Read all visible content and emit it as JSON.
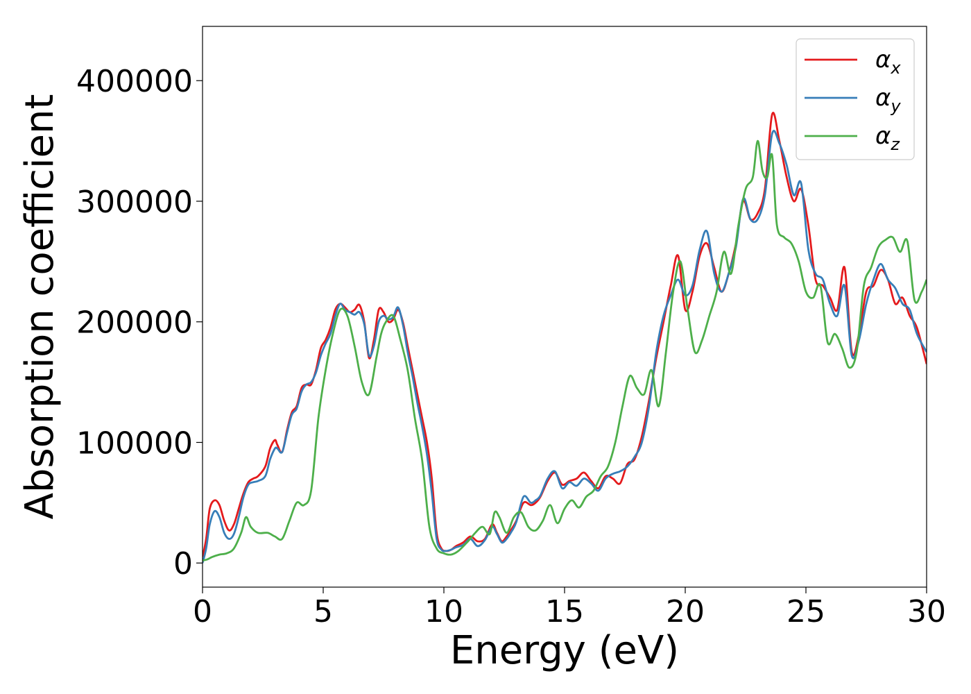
{
  "chart_data": {
    "type": "line",
    "title": "",
    "xlabel": "Energy (eV)",
    "ylabel": "Absorption coefficient",
    "xlim": [
      0,
      30
    ],
    "ylim": [
      -20000,
      445000
    ],
    "xticks": [
      0,
      5,
      10,
      15,
      20,
      25,
      30
    ],
    "xtick_labels": [
      "0",
      "5",
      "10",
      "15",
      "20",
      "25",
      "30"
    ],
    "yticks": [
      0,
      100000,
      200000,
      300000,
      400000
    ],
    "ytick_labels": [
      "0",
      "100000",
      "200000",
      "300000",
      "400000"
    ],
    "grid": false,
    "legend_position": "top-right",
    "series": [
      {
        "name": "α",
        "subscript": "x",
        "color": "#e41a1c",
        "x": [
          0,
          0.15,
          0.3,
          0.5,
          0.7,
          0.9,
          1.1,
          1.3,
          1.5,
          1.7,
          1.9,
          2.1,
          2.3,
          2.6,
          2.8,
          3.0,
          3.1,
          3.3,
          3.5,
          3.7,
          3.9,
          4.1,
          4.3,
          4.5,
          4.7,
          4.9,
          5.1,
          5.3,
          5.5,
          5.7,
          5.9,
          6.1,
          6.3,
          6.5,
          6.7,
          6.9,
          7.1,
          7.3,
          7.5,
          7.7,
          7.9,
          8.1,
          8.3,
          8.5,
          8.7,
          8.9,
          9.1,
          9.3,
          9.5,
          9.7,
          9.9,
          10.1,
          10.3,
          10.5,
          10.8,
          11.1,
          11.4,
          11.7,
          12.0,
          12.2,
          12.4,
          12.6,
          12.8,
          13.0,
          13.3,
          13.6,
          13.8,
          14.0,
          14.3,
          14.6,
          14.9,
          15.2,
          15.5,
          15.8,
          16.1,
          16.4,
          16.7,
          17.0,
          17.3,
          17.6,
          17.9,
          18.2,
          18.5,
          18.8,
          19.1,
          19.4,
          19.7,
          20.0,
          20.3,
          20.6,
          20.9,
          21.2,
          21.5,
          21.8,
          22.1,
          22.4,
          22.7,
          23.0,
          23.3,
          23.6,
          23.9,
          24.2,
          24.5,
          24.8,
          25.1,
          25.4,
          25.7,
          26.0,
          26.3,
          26.6,
          26.9,
          27.2,
          27.5,
          27.8,
          28.1,
          28.4,
          28.7,
          29.0,
          29.3,
          29.6,
          30.0
        ],
        "y": [
          5000,
          20000,
          45000,
          52000,
          48000,
          35000,
          27000,
          32000,
          45000,
          58000,
          67000,
          70000,
          72000,
          80000,
          95000,
          102000,
          98000,
          92000,
          110000,
          125000,
          130000,
          145000,
          148000,
          148000,
          160000,
          178000,
          185000,
          195000,
          210000,
          215000,
          212000,
          208000,
          210000,
          214000,
          200000,
          170000,
          185000,
          210000,
          208000,
          200000,
          202000,
          210000,
          200000,
          180000,
          160000,
          140000,
          120000,
          100000,
          70000,
          25000,
          12000,
          10000,
          11000,
          14000,
          17000,
          22000,
          18000,
          20000,
          32000,
          25000,
          18000,
          22000,
          28000,
          35000,
          50000,
          48000,
          50000,
          55000,
          68000,
          75000,
          65000,
          68000,
          70000,
          75000,
          68000,
          62000,
          72000,
          70000,
          66000,
          82000,
          86000,
          105000,
          135000,
          170000,
          200000,
          230000,
          255000,
          210000,
          225000,
          255000,
          265000,
          245000,
          225000,
          240000,
          265000,
          300000,
          285000,
          290000,
          310000,
          372000,
          350000,
          320000,
          300000,
          310000,
          280000,
          235000,
          230000,
          220000,
          210000,
          245000,
          175000,
          190000,
          225000,
          230000,
          243000,
          235000,
          215000,
          220000,
          205000,
          195000,
          165000
        ]
      },
      {
        "name": "α",
        "subscript": "y",
        "color": "#377eb8",
        "x": [
          0,
          0.15,
          0.3,
          0.5,
          0.7,
          0.9,
          1.1,
          1.3,
          1.5,
          1.7,
          1.9,
          2.1,
          2.3,
          2.6,
          2.8,
          3.0,
          3.1,
          3.3,
          3.5,
          3.7,
          3.9,
          4.1,
          4.3,
          4.5,
          4.7,
          4.9,
          5.1,
          5.3,
          5.5,
          5.7,
          5.9,
          6.1,
          6.3,
          6.5,
          6.7,
          6.9,
          7.1,
          7.3,
          7.5,
          7.7,
          7.9,
          8.1,
          8.3,
          8.5,
          8.7,
          8.9,
          9.1,
          9.3,
          9.5,
          9.7,
          9.9,
          10.1,
          10.3,
          10.5,
          10.8,
          11.1,
          11.4,
          11.7,
          12.0,
          12.2,
          12.4,
          12.6,
          12.8,
          13.0,
          13.3,
          13.6,
          13.8,
          14.0,
          14.3,
          14.6,
          14.9,
          15.2,
          15.5,
          15.8,
          16.1,
          16.4,
          16.7,
          17.0,
          17.3,
          17.6,
          17.9,
          18.2,
          18.5,
          18.8,
          19.1,
          19.4,
          19.7,
          20.0,
          20.3,
          20.6,
          20.9,
          21.2,
          21.5,
          21.8,
          22.1,
          22.4,
          22.7,
          23.0,
          23.3,
          23.6,
          23.9,
          24.2,
          24.5,
          24.8,
          25.1,
          25.4,
          25.7,
          26.0,
          26.3,
          26.6,
          26.9,
          27.2,
          27.5,
          27.8,
          28.1,
          28.4,
          28.7,
          29.0,
          29.3,
          29.6,
          30.0
        ],
        "y": [
          0,
          12000,
          32000,
          43000,
          38000,
          25000,
          20000,
          24000,
          38000,
          55000,
          65000,
          67000,
          68000,
          72000,
          86000,
          95000,
          95000,
          92000,
          108000,
          123000,
          128000,
          142000,
          148000,
          150000,
          158000,
          172000,
          182000,
          190000,
          205000,
          215000,
          210000,
          208000,
          206000,
          208000,
          198000,
          172000,
          180000,
          200000,
          205000,
          202000,
          204000,
          212000,
          198000,
          175000,
          155000,
          133000,
          113000,
          90000,
          58000,
          20000,
          11000,
          10000,
          11000,
          13000,
          15000,
          20000,
          14000,
          19000,
          30000,
          24000,
          17000,
          20000,
          26000,
          34000,
          55000,
          50000,
          52000,
          56000,
          70000,
          76000,
          62000,
          67000,
          64000,
          70000,
          66000,
          60000,
          70000,
          74000,
          76000,
          80000,
          88000,
          100000,
          130000,
          175000,
          205000,
          222000,
          235000,
          222000,
          230000,
          260000,
          275000,
          240000,
          225000,
          240000,
          262000,
          302000,
          285000,
          285000,
          305000,
          356000,
          348000,
          330000,
          305000,
          315000,
          260000,
          240000,
          235000,
          215000,
          205000,
          230000,
          172000,
          185000,
          215000,
          235000,
          248000,
          235000,
          228000,
          215000,
          210000,
          190000,
          175000
        ]
      },
      {
        "name": "α",
        "subscript": "z",
        "color": "#4daf4a",
        "x": [
          0,
          0.2,
          0.4,
          0.7,
          1.0,
          1.3,
          1.6,
          1.8,
          2.0,
          2.3,
          2.7,
          3.0,
          3.3,
          3.6,
          3.9,
          4.2,
          4.5,
          4.8,
          5.1,
          5.4,
          5.7,
          6.0,
          6.3,
          6.6,
          6.9,
          7.2,
          7.4,
          7.6,
          7.9,
          8.2,
          8.5,
          8.8,
          9.1,
          9.4,
          9.7,
          10.0,
          10.3,
          10.6,
          11.0,
          11.3,
          11.6,
          11.9,
          12.1,
          12.3,
          12.6,
          12.9,
          13.2,
          13.5,
          13.8,
          14.1,
          14.4,
          14.7,
          15.0,
          15.3,
          15.6,
          15.9,
          16.2,
          16.5,
          16.8,
          17.1,
          17.4,
          17.7,
          18.0,
          18.3,
          18.6,
          18.9,
          19.2,
          19.5,
          19.8,
          20.1,
          20.4,
          20.7,
          21.0,
          21.3,
          21.6,
          21.9,
          22.2,
          22.5,
          22.8,
          23.0,
          23.2,
          23.4,
          23.6,
          23.8,
          24.1,
          24.4,
          24.7,
          25.0,
          25.3,
          25.6,
          25.9,
          26.2,
          26.5,
          26.8,
          27.1,
          27.4,
          27.7,
          28.0,
          28.3,
          28.6,
          28.9,
          29.2,
          29.5,
          29.8,
          30.0
        ],
        "y": [
          2000,
          3000,
          5000,
          7000,
          8000,
          12000,
          25000,
          38000,
          30000,
          25000,
          25000,
          22000,
          20000,
          35000,
          50000,
          48000,
          60000,
          120000,
          160000,
          190000,
          210000,
          205000,
          180000,
          150000,
          140000,
          170000,
          190000,
          200000,
          205000,
          185000,
          160000,
          120000,
          85000,
          30000,
          12000,
          8000,
          7000,
          10000,
          18000,
          25000,
          30000,
          24000,
          42000,
          38000,
          25000,
          38000,
          42000,
          30000,
          27000,
          35000,
          48000,
          33000,
          45000,
          52000,
          46000,
          55000,
          60000,
          72000,
          80000,
          100000,
          130000,
          155000,
          145000,
          140000,
          160000,
          130000,
          175000,
          225000,
          250000,
          210000,
          175000,
          185000,
          205000,
          225000,
          258000,
          240000,
          280000,
          310000,
          320000,
          350000,
          325000,
          320000,
          338000,
          280000,
          270000,
          265000,
          250000,
          225000,
          220000,
          230000,
          183000,
          190000,
          178000,
          162000,
          175000,
          230000,
          245000,
          262000,
          268000,
          270000,
          258000,
          267000,
          218000,
          225000,
          235000
        ]
      }
    ]
  }
}
